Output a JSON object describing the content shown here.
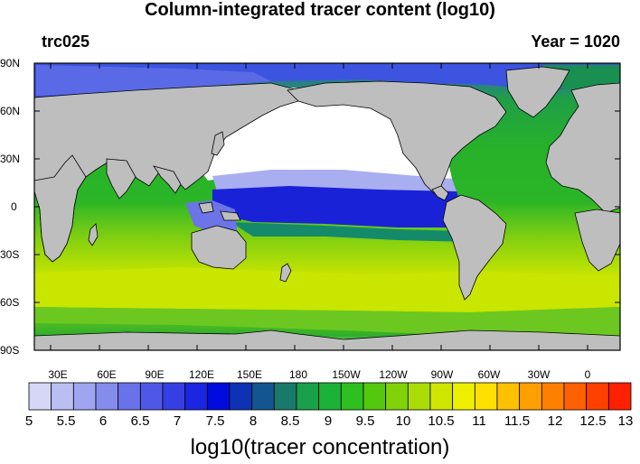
{
  "title": "Column-integrated tracer content (log10)",
  "left_label": "trc025",
  "right_label": "Year = 1020",
  "lat_labels": [
    "90N",
    "60N",
    "30N",
    "0",
    "30S",
    "60S",
    "90S"
  ],
  "lon_labels": [
    "30E",
    "60E",
    "90E",
    "120E",
    "150E",
    "180",
    "150W",
    "120W",
    "90W",
    "60W",
    "30W",
    "0"
  ],
  "colorbar": {
    "title": "log10(tracer concentration)",
    "tick_labels": [
      "5",
      "5.5",
      "6",
      "6.5",
      "7",
      "7.5",
      "8",
      "8.5",
      "9",
      "9.5",
      "10",
      "10.5",
      "11",
      "11.5",
      "12",
      "12.5",
      "13"
    ],
    "colors": [
      "#d4d8f6",
      "#babff3",
      "#9fa6ef",
      "#848cec",
      "#6a72e9",
      "#4f58e6",
      "#353fe3",
      "#1a26e0",
      "#000cdd",
      "#0d32b4",
      "#13568f",
      "#187a6a",
      "#18a04a",
      "#1cb23a",
      "#2ec020",
      "#54c80e",
      "#82d20a",
      "#aadc06",
      "#cfe600",
      "#eef000",
      "#ffe000",
      "#ffc000",
      "#ffa000",
      "#ff8000",
      "#ff6000",
      "#ff4000",
      "#ff2000"
    ]
  },
  "map": {
    "land_color": "#bebebe",
    "ocean_colors": {
      "pacific_north": "#ffffff",
      "pacific_equatorial": "#1520d8",
      "southern_ocean": "#c6e400",
      "atlantic": "#2fb325",
      "indian": "#3cb52a",
      "arctic": "#3c54e0"
    }
  }
}
